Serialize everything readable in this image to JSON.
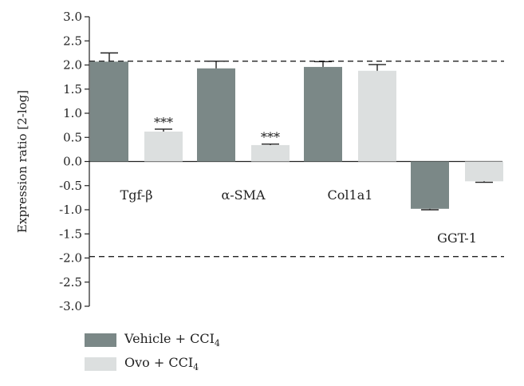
{
  "chart_data": {
    "type": "bar",
    "ylabel": "Expression ratio [2-log]",
    "ylim": [
      -3.0,
      3.0
    ],
    "yticks": [
      "3.0",
      "2.5",
      "2.0",
      "1.5",
      "1.0",
      "0.5",
      "0.0",
      "-0.5",
      "-1.0",
      "-1.5",
      "-2.0",
      "-2.5",
      "-3.0"
    ],
    "reference_lines": [
      2.08,
      -1.97
    ],
    "categories": [
      "Tgf-β",
      "α-SMA",
      "Col1a1",
      "GGT-1"
    ],
    "series": [
      {
        "name": "Vehicle + CCI4",
        "color": "#7b8887",
        "values": [
          2.07,
          1.93,
          1.96,
          -0.98
        ],
        "errors": [
          0.18,
          0.15,
          0.11,
          0.02
        ]
      },
      {
        "name": "Ovo + CCI4",
        "color": "#dcdfdf",
        "values": [
          0.62,
          0.34,
          1.88,
          -0.41
        ],
        "errors": [
          0.05,
          0.02,
          0.13,
          0.02
        ]
      }
    ],
    "annotations": [
      "",
      "***",
      "",
      "***",
      "",
      "",
      "",
      ""
    ],
    "grid": false,
    "legend_position": "bottom-left"
  },
  "legend": {
    "items": [
      {
        "main": "Vehicle + CCI",
        "sub": "4",
        "color": "#7b8887"
      },
      {
        "main": "Ovo + CCI",
        "sub": "4",
        "color": "#dcdfdf"
      }
    ]
  }
}
